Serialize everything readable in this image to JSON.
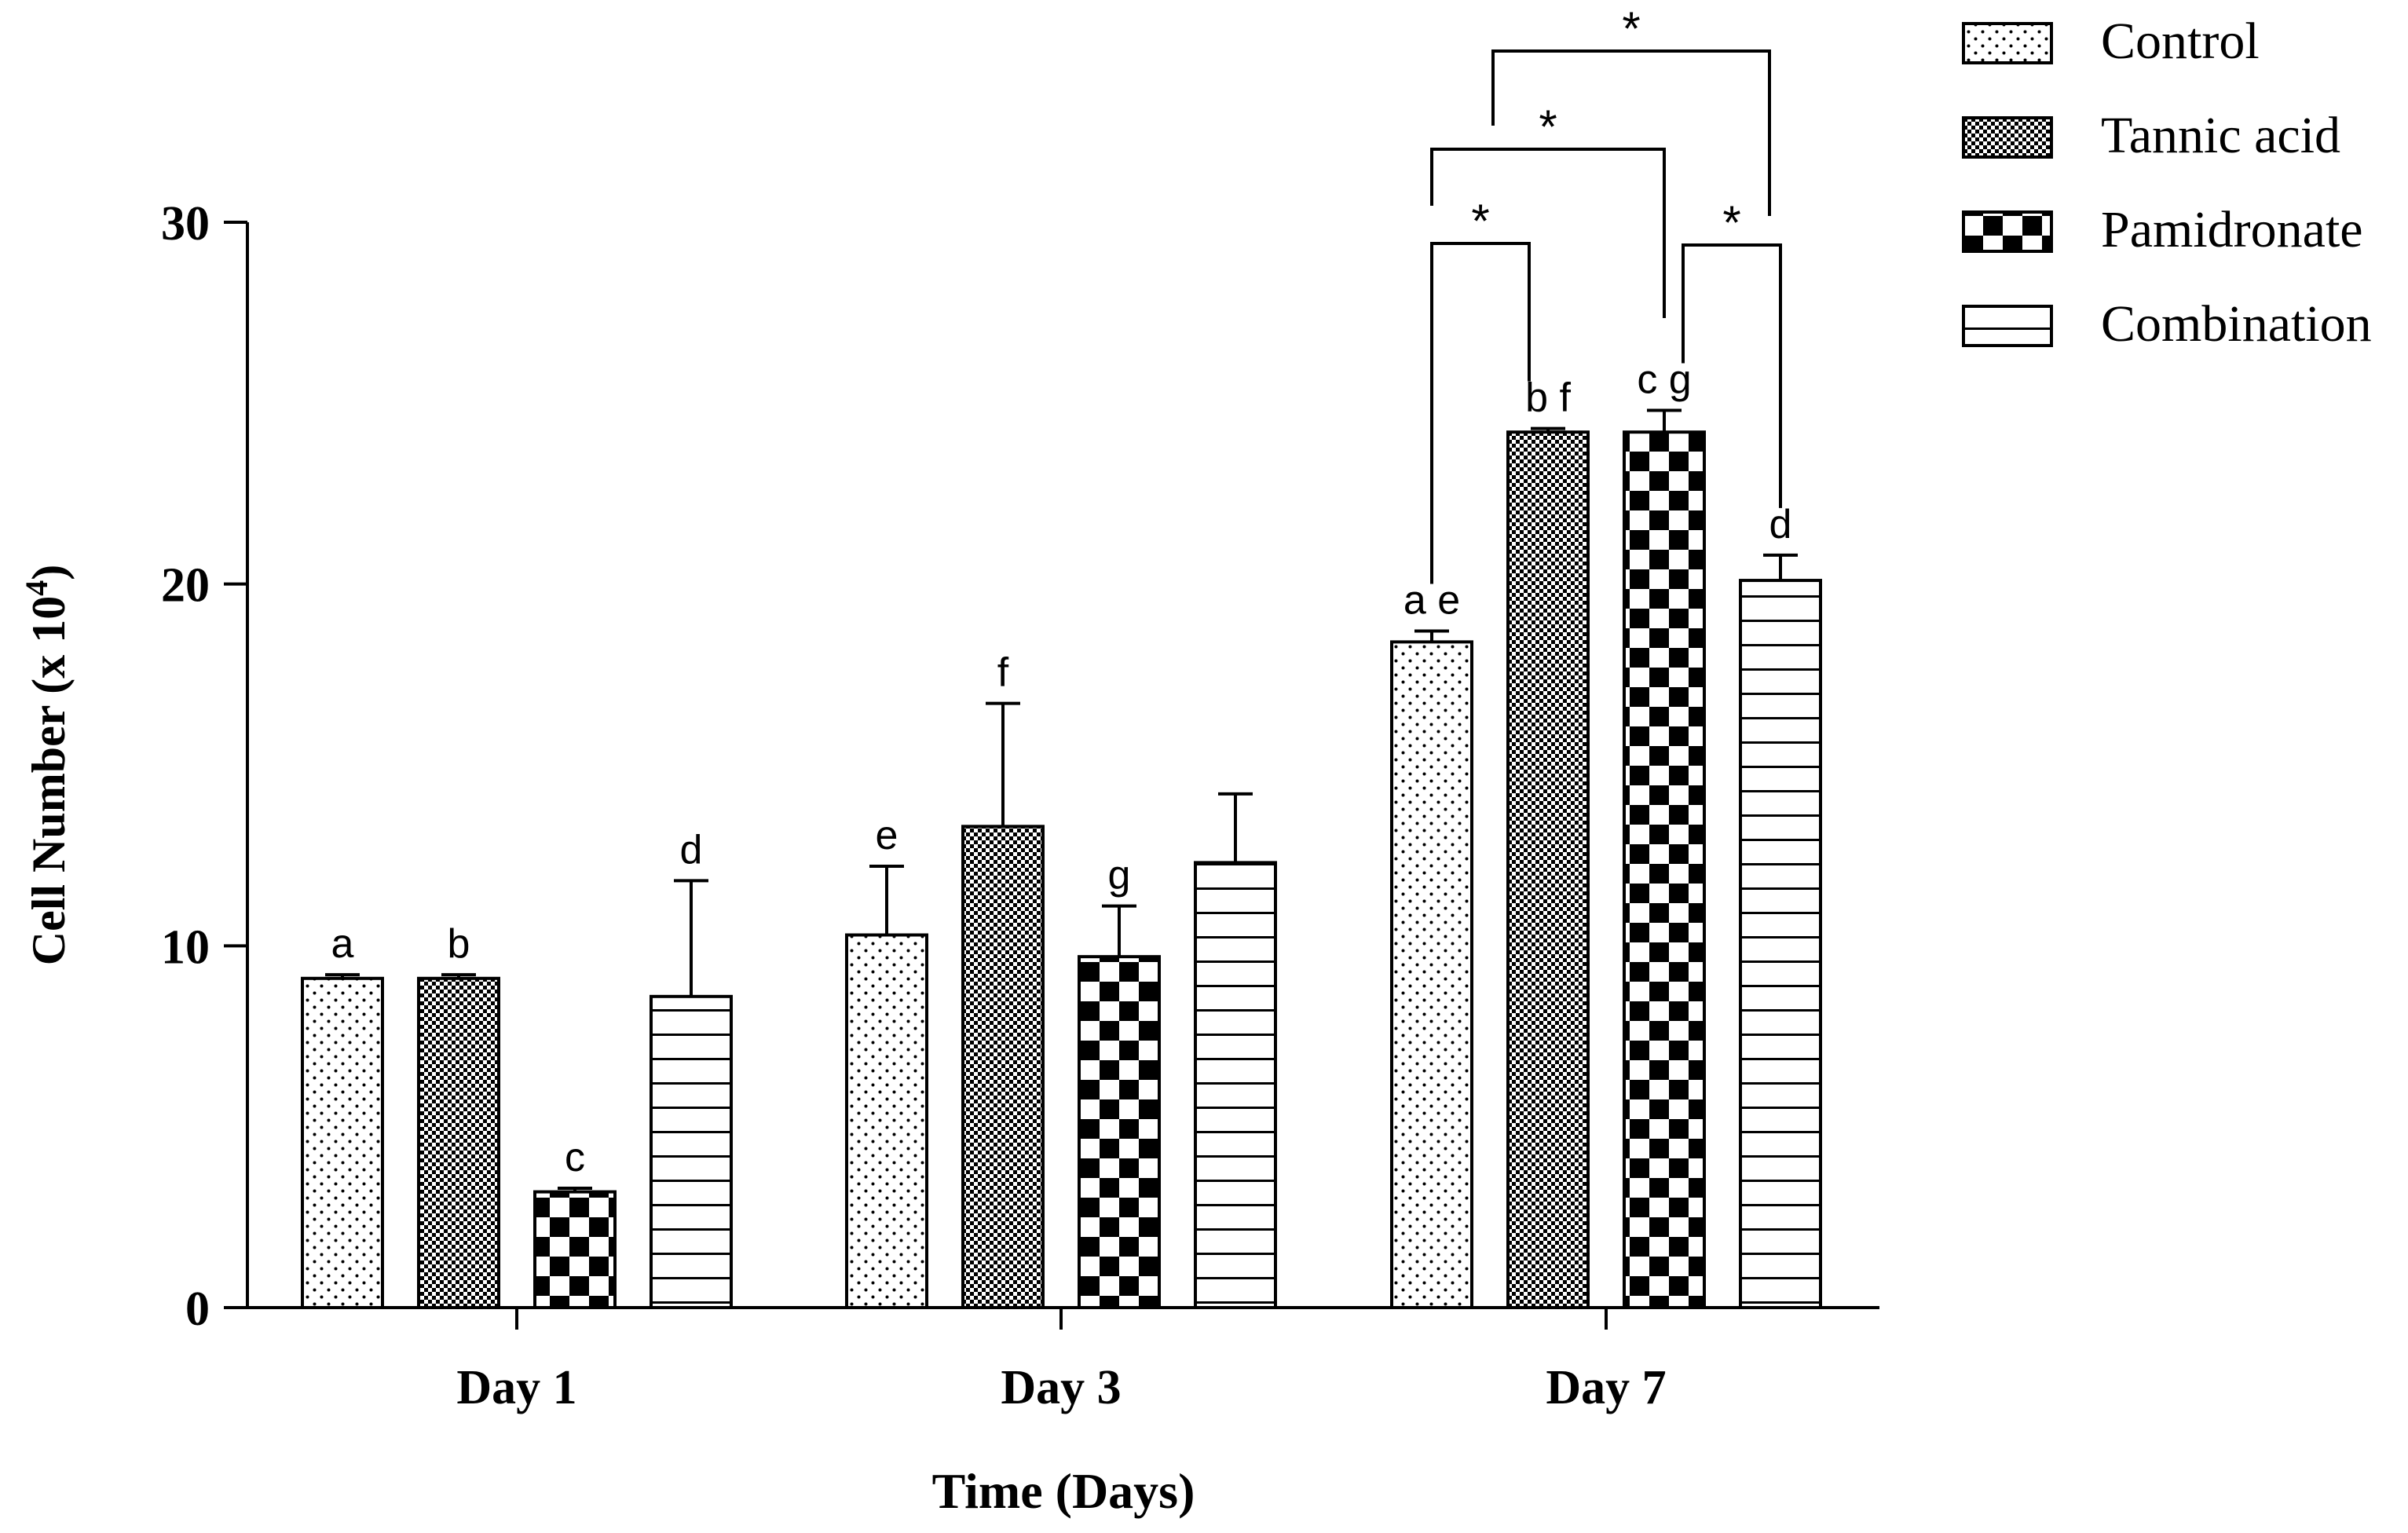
{
  "chart_data": {
    "type": "bar",
    "title": "",
    "xlabel": "Time (Days)",
    "ylabel": "Cell Number (x 10",
    "ylabel_exponent": "4",
    "ylabel_close": ")",
    "ylim": [
      0,
      30
    ],
    "yticks": [
      0,
      10,
      20,
      30
    ],
    "categories": [
      "Day 1",
      "Day 3",
      "Day 7"
    ],
    "series": [
      {
        "name": "Control",
        "pattern": "dots",
        "values": [
          9.1,
          10.3,
          18.4
        ],
        "errors": [
          0.1,
          1.9,
          0.3
        ],
        "letters": [
          "a",
          "e",
          "a e"
        ]
      },
      {
        "name": "Tannic acid",
        "pattern": "fine",
        "values": [
          9.1,
          13.3,
          24.2
        ],
        "errors": [
          0.1,
          3.4,
          0.1
        ],
        "letters": [
          "b",
          "f",
          "b  f"
        ]
      },
      {
        "name": "Pamidronate",
        "pattern": "checker",
        "values": [
          3.2,
          9.7,
          24.2
        ],
        "errors": [
          0.1,
          1.4,
          0.6
        ],
        "letters": [
          "c",
          "g",
          "c  g"
        ]
      },
      {
        "name": "Combination",
        "pattern": "hlines",
        "values": [
          8.6,
          12.3,
          20.1
        ],
        "errors": [
          3.2,
          1.9,
          0.7
        ],
        "letters": [
          "d",
          "",
          "d"
        ]
      }
    ],
    "significance": [
      {
        "group": "Day 7",
        "from": "Control",
        "to": "Tannic acid",
        "label": "*"
      },
      {
        "group": "Day 7",
        "from": "Control",
        "to": "Pamidronate",
        "label": "*"
      },
      {
        "group": "Day 7",
        "from": "Pamidronate",
        "to": "Combination",
        "label": "*"
      },
      {
        "group": "Day 7",
        "from": "Tannic acid",
        "to": "Combination",
        "label": "*"
      }
    ],
    "legend_position": "top-right",
    "colors": {
      "ink": "#000000",
      "paper": "#ffffff"
    }
  }
}
